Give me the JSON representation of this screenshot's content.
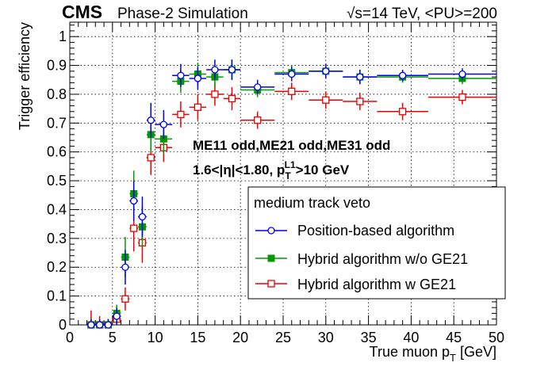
{
  "chart_data": {
    "type": "scatter",
    "header": {
      "experiment": "CMS",
      "subtitle": "Phase-2 Simulation",
      "energy": "√s=14 TeV, <PU>=200"
    },
    "xlabel": "True muon p",
    "xlabel_sub": "T",
    "xlabel_unit": "[GeV]",
    "ylabel": "Trigger efficiency",
    "xlim": [
      0,
      50
    ],
    "ylim": [
      0,
      1.05
    ],
    "xticks": [
      0,
      5,
      10,
      15,
      20,
      25,
      30,
      35,
      40,
      45,
      50
    ],
    "yticks": [
      0,
      0.1,
      0.2,
      0.3,
      0.4,
      0.5,
      0.6,
      0.7,
      0.8,
      0.9,
      1
    ],
    "xtick_labels": [
      "0",
      "5",
      "10",
      "15",
      "20",
      "25",
      "30",
      "35",
      "40",
      "45",
      "50"
    ],
    "ytick_labels": [
      "0",
      "0.1",
      "0.2",
      "0.3",
      "0.4",
      "0.5",
      "0.6",
      "0.7",
      "0.8",
      "0.9",
      "1"
    ],
    "grid": true,
    "annotations": [
      "ME11 odd,ME21 odd,ME31 odd",
      "1.6<|η|<1.80, p",
      "T",
      "L1",
      ">10 GeV"
    ],
    "legend": {
      "title": "medium track veto",
      "position": "center-right",
      "entries": [
        "Position-based algorithm",
        "Hybrid algorithm w/o GE21",
        "Hybrid algorithm w GE21"
      ]
    },
    "series": [
      {
        "name": "Position-based algorithm",
        "color": "#0000ee",
        "marker": "open-circle",
        "points": [
          {
            "x": 2.5,
            "xerr": 0.5,
            "y": 0.0,
            "yerr": 0.02
          },
          {
            "x": 3.5,
            "xerr": 0.5,
            "y": 0.0,
            "yerr": 0.02
          },
          {
            "x": 4.5,
            "xerr": 0.5,
            "y": 0.0,
            "yerr": 0.02
          },
          {
            "x": 5.5,
            "xerr": 0.5,
            "y": 0.03,
            "yerr": 0.03
          },
          {
            "x": 6.5,
            "xerr": 0.5,
            "y": 0.2,
            "yerr": 0.06
          },
          {
            "x": 7.5,
            "xerr": 0.5,
            "y": 0.43,
            "yerr": 0.07
          },
          {
            "x": 8.5,
            "xerr": 0.5,
            "y": 0.375,
            "yerr": 0.07
          },
          {
            "x": 9.5,
            "xerr": 0.5,
            "y": 0.71,
            "yerr": 0.06
          },
          {
            "x": 11,
            "xerr": 1,
            "y": 0.695,
            "yerr": 0.05
          },
          {
            "x": 13,
            "xerr": 1,
            "y": 0.865,
            "yerr": 0.04
          },
          {
            "x": 15,
            "xerr": 1,
            "y": 0.855,
            "yerr": 0.04
          },
          {
            "x": 17,
            "xerr": 1,
            "y": 0.885,
            "yerr": 0.035
          },
          {
            "x": 19,
            "xerr": 1,
            "y": 0.885,
            "yerr": 0.035
          },
          {
            "x": 22,
            "xerr": 2,
            "y": 0.825,
            "yerr": 0.025
          },
          {
            "x": 26,
            "xerr": 2,
            "y": 0.87,
            "yerr": 0.025
          },
          {
            "x": 30,
            "xerr": 2,
            "y": 0.88,
            "yerr": 0.025
          },
          {
            "x": 34,
            "xerr": 2,
            "y": 0.86,
            "yerr": 0.025
          },
          {
            "x": 39,
            "xerr": 3,
            "y": 0.865,
            "yerr": 0.02
          },
          {
            "x": 46,
            "xerr": 4,
            "y": 0.87,
            "yerr": 0.02
          }
        ]
      },
      {
        "name": "Hybrid algorithm w/o GE21",
        "color": "#009900",
        "marker": "filled-square",
        "points": [
          {
            "x": 2.5,
            "xerr": 0.5,
            "y": 0.0,
            "yerr": 0.02
          },
          {
            "x": 3.5,
            "xerr": 0.5,
            "y": 0.0,
            "yerr": 0.02
          },
          {
            "x": 4.5,
            "xerr": 0.5,
            "y": 0.0,
            "yerr": 0.02
          },
          {
            "x": 5.5,
            "xerr": 0.5,
            "y": 0.04,
            "yerr": 0.03
          },
          {
            "x": 6.5,
            "xerr": 0.5,
            "y": 0.235,
            "yerr": 0.07
          },
          {
            "x": 7.5,
            "xerr": 0.5,
            "y": 0.455,
            "yerr": 0.08
          },
          {
            "x": 8.5,
            "xerr": 0.5,
            "y": 0.34,
            "yerr": 0.07
          },
          {
            "x": 9.5,
            "xerr": 0.5,
            "y": 0.66,
            "yerr": 0.06
          },
          {
            "x": 11,
            "xerr": 1,
            "y": 0.645,
            "yerr": 0.05
          },
          {
            "x": 13,
            "xerr": 1,
            "y": 0.845,
            "yerr": 0.04
          },
          {
            "x": 15,
            "xerr": 1,
            "y": 0.87,
            "yerr": 0.04
          },
          {
            "x": 17,
            "xerr": 1,
            "y": 0.86,
            "yerr": 0.035
          },
          {
            "x": 19,
            "xerr": 1,
            "y": 0.885,
            "yerr": 0.035
          },
          {
            "x": 22,
            "xerr": 2,
            "y": 0.815,
            "yerr": 0.025
          },
          {
            "x": 26,
            "xerr": 2,
            "y": 0.875,
            "yerr": 0.025
          },
          {
            "x": 30,
            "xerr": 2,
            "y": 0.88,
            "yerr": 0.025
          },
          {
            "x": 34,
            "xerr": 2,
            "y": 0.86,
            "yerr": 0.025
          },
          {
            "x": 39,
            "xerr": 3,
            "y": 0.86,
            "yerr": 0.02
          },
          {
            "x": 46,
            "xerr": 4,
            "y": 0.855,
            "yerr": 0.02
          }
        ]
      },
      {
        "name": "Hybrid algorithm w GE21",
        "color": "#ee0000",
        "marker": "open-square",
        "points": [
          {
            "x": 2.5,
            "xerr": 0.5,
            "y": 0.0,
            "yerr": 0.05
          },
          {
            "x": 3.5,
            "xerr": 0.5,
            "y": 0.0,
            "yerr": 0.03
          },
          {
            "x": 4.5,
            "xerr": 0.5,
            "y": 0.0,
            "yerr": 0.02
          },
          {
            "x": 5.5,
            "xerr": 0.5,
            "y": 0.02,
            "yerr": 0.03
          },
          {
            "x": 6.5,
            "xerr": 0.5,
            "y": 0.09,
            "yerr": 0.04
          },
          {
            "x": 7.5,
            "xerr": 0.5,
            "y": 0.335,
            "yerr": 0.08
          },
          {
            "x": 8.5,
            "xerr": 0.5,
            "y": 0.285,
            "yerr": 0.07
          },
          {
            "x": 9.5,
            "xerr": 0.5,
            "y": 0.58,
            "yerr": 0.06
          },
          {
            "x": 11,
            "xerr": 1,
            "y": 0.615,
            "yerr": 0.05
          },
          {
            "x": 13,
            "xerr": 1,
            "y": 0.73,
            "yerr": 0.045
          },
          {
            "x": 15,
            "xerr": 1,
            "y": 0.755,
            "yerr": 0.045
          },
          {
            "x": 17,
            "xerr": 1,
            "y": 0.8,
            "yerr": 0.04
          },
          {
            "x": 19,
            "xerr": 1,
            "y": 0.785,
            "yerr": 0.04
          },
          {
            "x": 22,
            "xerr": 2,
            "y": 0.71,
            "yerr": 0.03
          },
          {
            "x": 26,
            "xerr": 2,
            "y": 0.81,
            "yerr": 0.03
          },
          {
            "x": 30,
            "xerr": 2,
            "y": 0.78,
            "yerr": 0.03
          },
          {
            "x": 34,
            "xerr": 2,
            "y": 0.775,
            "yerr": 0.03
          },
          {
            "x": 39,
            "xerr": 3,
            "y": 0.74,
            "yerr": 0.03
          },
          {
            "x": 46,
            "xerr": 4,
            "y": 0.79,
            "yerr": 0.025
          }
        ]
      }
    ]
  }
}
